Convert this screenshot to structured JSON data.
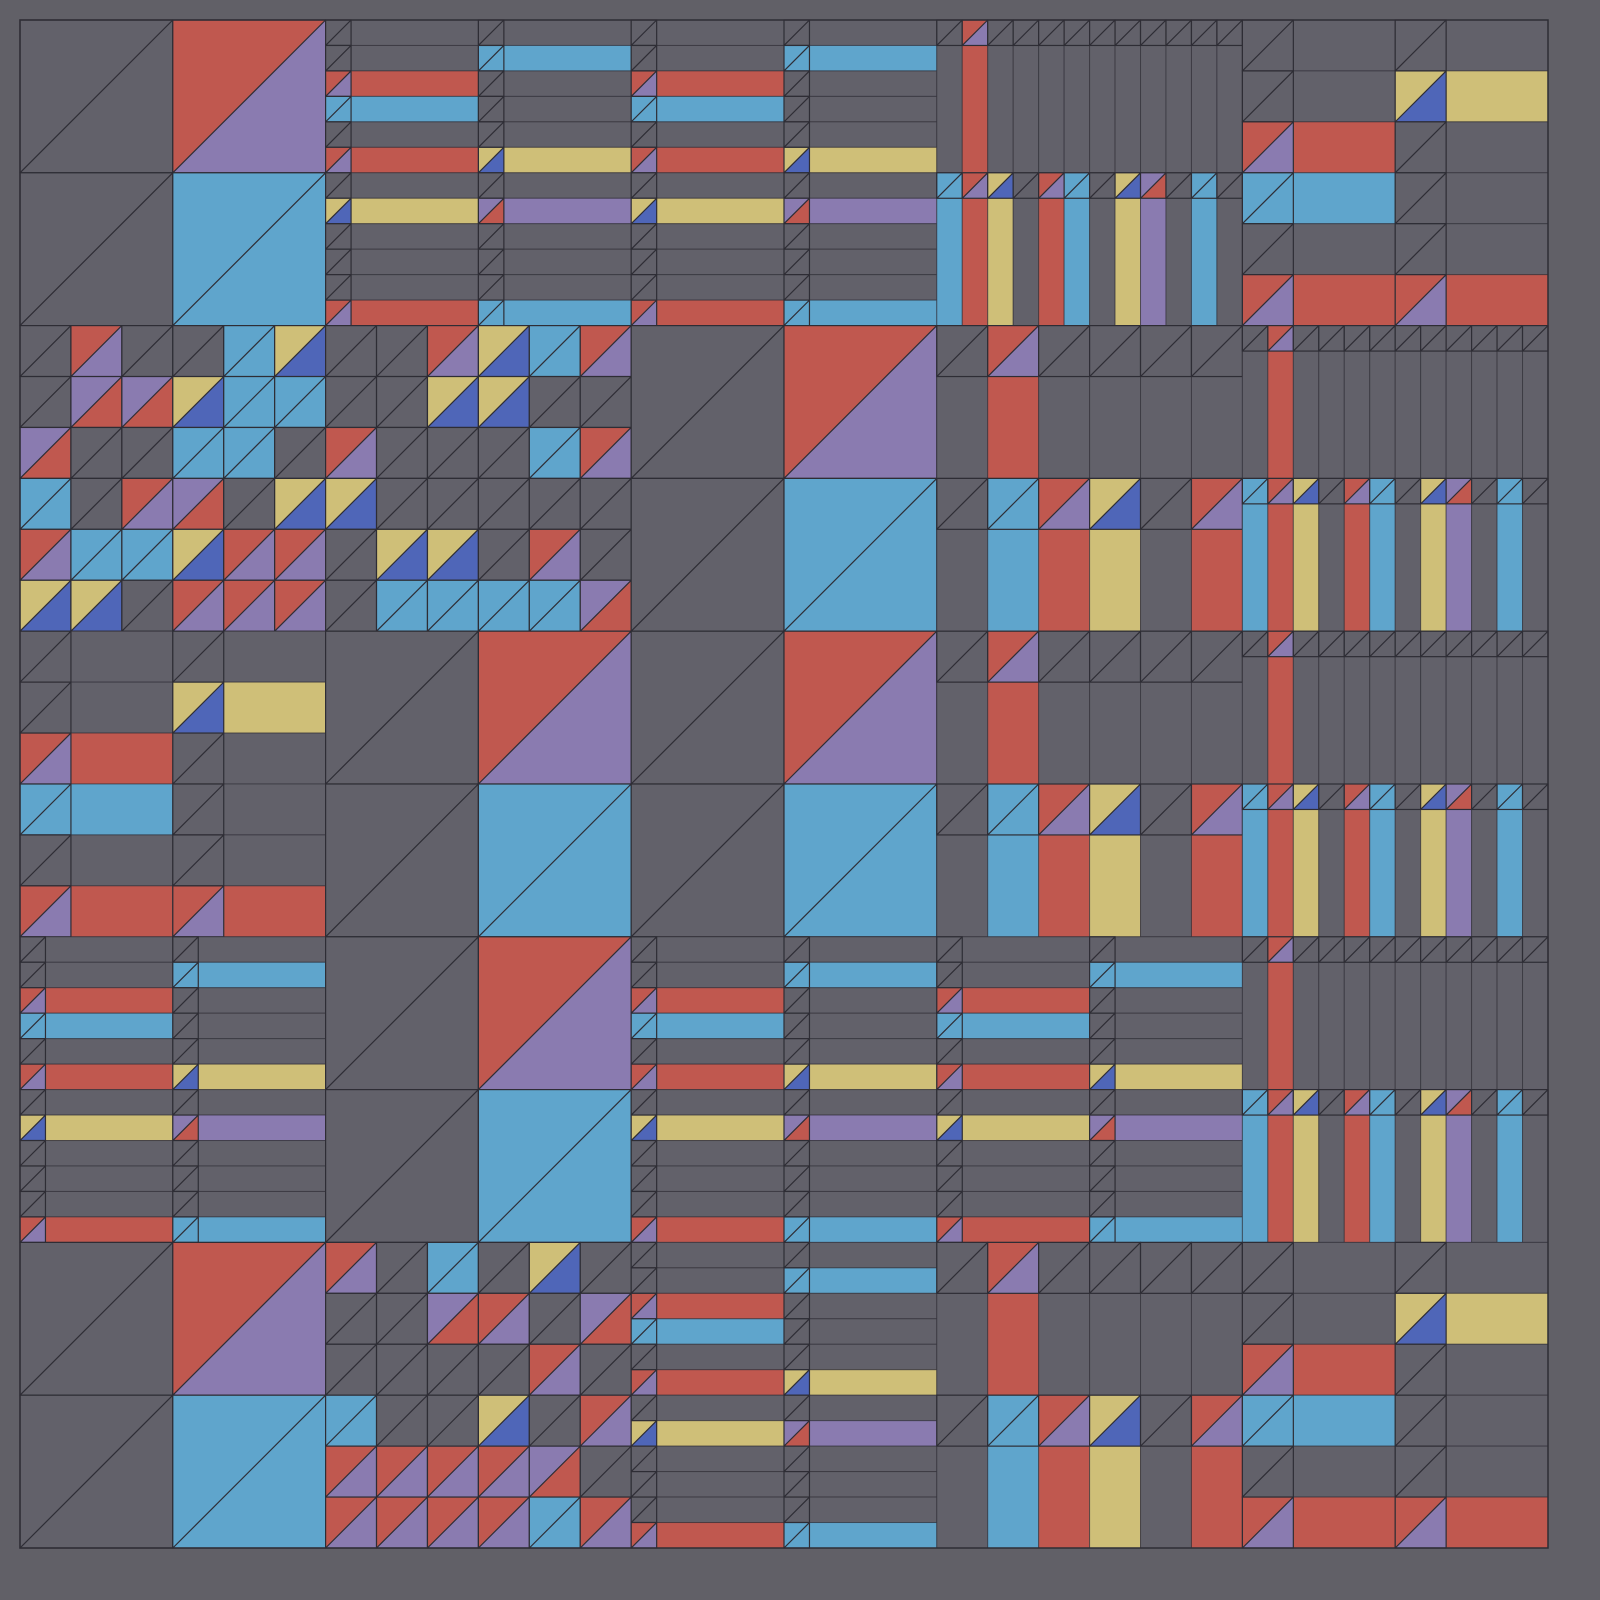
{
  "palette": {
    "background": "#616067",
    "gray": "#62616a",
    "red": "#c0584f",
    "purple": "#8a7bb0",
    "blue": "#5fa5cc",
    "yellow": "#cfbf78",
    "darkblue": "#4f66b8",
    "line": "#2e2d35"
  },
  "block_grid": [
    [
      "quad",
      "hstripes",
      "hstripes",
      "vstripes",
      "bars"
    ],
    [
      "squares",
      "squares",
      "quad",
      "columns",
      "vstripes"
    ],
    [
      "bars",
      "quad",
      "quad",
      "columns",
      "vstripes"
    ],
    [
      "hstripes",
      "quad",
      "hstripes",
      "hstripes",
      "vstripes"
    ],
    [
      "quad",
      "squares",
      "hstripes",
      "columns",
      "bars"
    ]
  ]
}
